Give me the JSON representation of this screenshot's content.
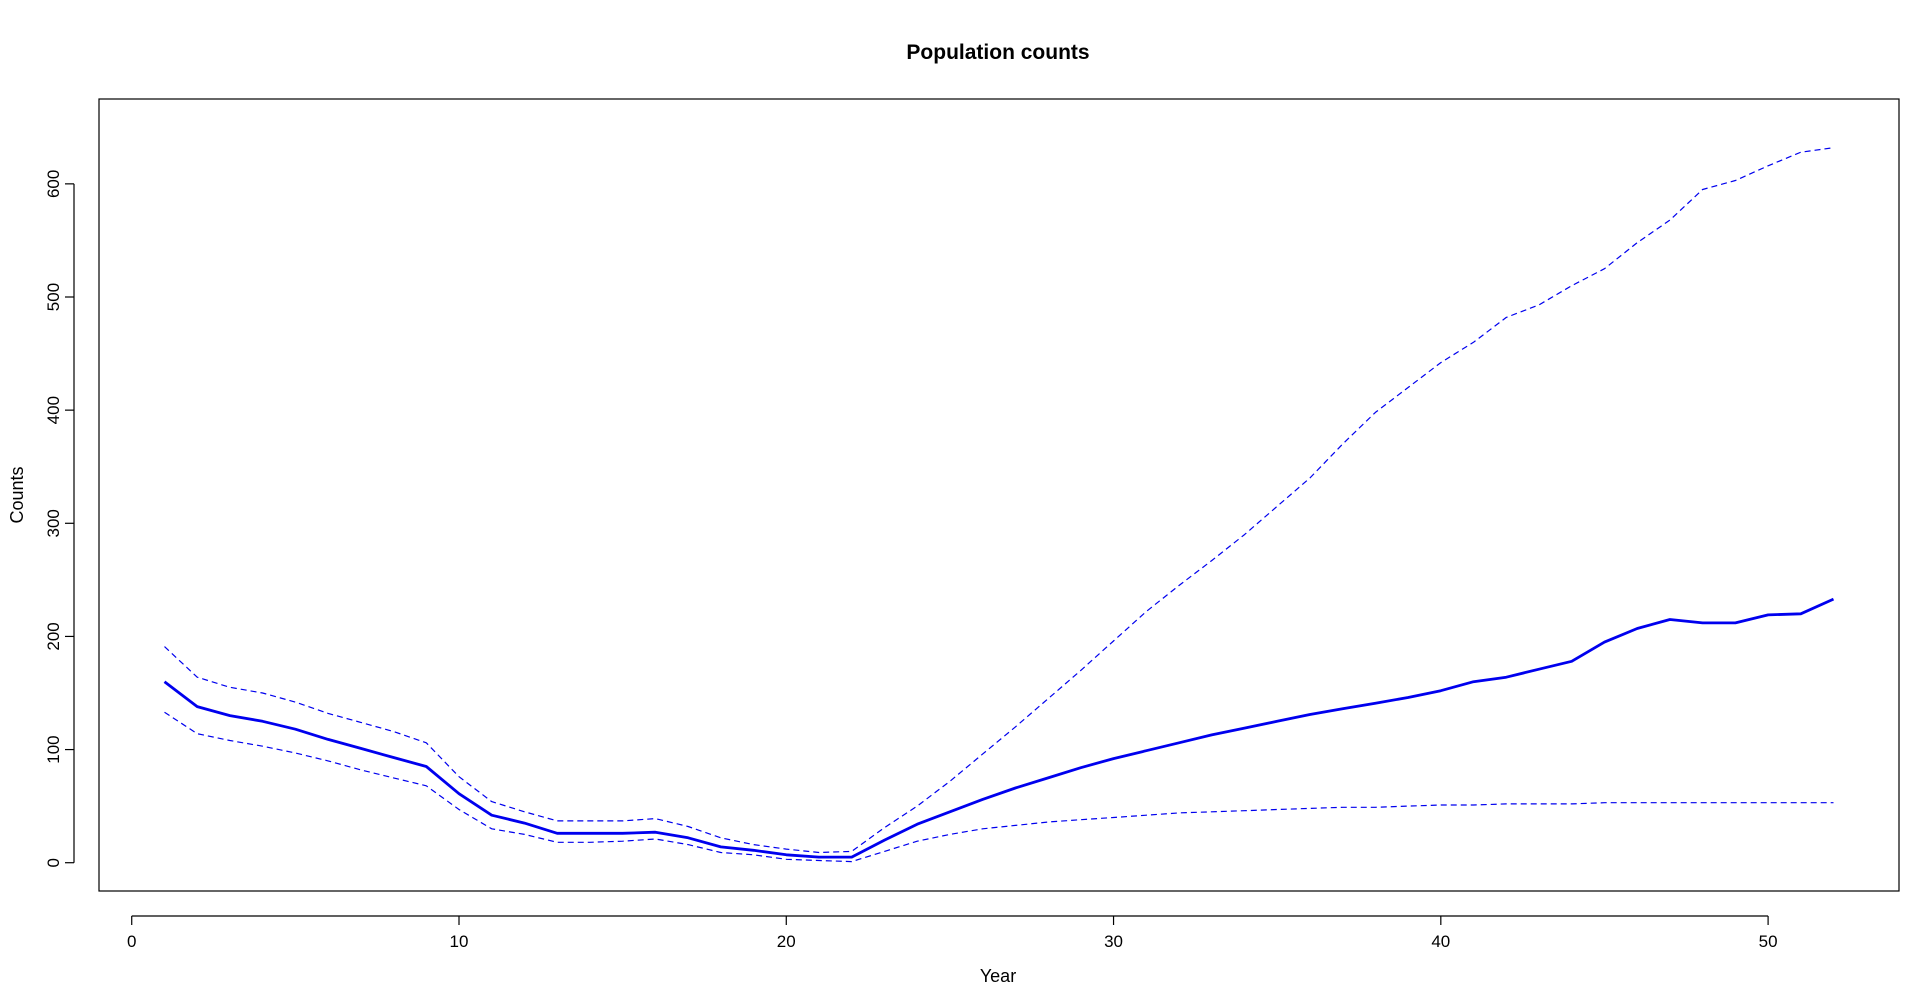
{
  "chart_data": {
    "type": "line",
    "title": "Population counts",
    "xlabel": "Year",
    "ylabel": "Counts",
    "xlim": [
      -1,
      54
    ],
    "ylim": [
      -25,
      675
    ],
    "x_ticks": [
      0,
      10,
      20,
      30,
      40,
      50
    ],
    "y_ticks": [
      0,
      100,
      200,
      300,
      400,
      500,
      600
    ],
    "x_tick_labels": [
      "0",
      "10",
      "20",
      "30",
      "40",
      "50"
    ],
    "y_tick_labels": [
      "0",
      "100",
      "200",
      "300",
      "400",
      "500",
      "600"
    ],
    "grid": false,
    "legend": "none",
    "x": [
      1,
      2,
      3,
      4,
      5,
      6,
      7,
      8,
      9,
      10,
      11,
      12,
      13,
      14,
      15,
      16,
      17,
      18,
      19,
      20,
      21,
      22,
      23,
      24,
      25,
      26,
      27,
      28,
      29,
      30,
      31,
      32,
      33,
      34,
      35,
      36,
      37,
      38,
      39,
      40,
      41,
      42,
      43,
      44,
      45,
      46,
      47,
      48,
      49,
      50,
      51,
      52
    ],
    "series": [
      {
        "style": "solid",
        "color": "#0000ee",
        "values": [
          160,
          138,
          130,
          125,
          118,
          109,
          101,
          93,
          85,
          61,
          42,
          35,
          26,
          26,
          26,
          27,
          22,
          14,
          11,
          7,
          5,
          5,
          20,
          34,
          45,
          56,
          66,
          75,
          84,
          92,
          99,
          106,
          113,
          119,
          125,
          131,
          136,
          141,
          146,
          152,
          160,
          164,
          171,
          178,
          195,
          207,
          215,
          212,
          212,
          219,
          220,
          233
        ]
      },
      {
        "style": "dashed",
        "color": "#0000ee",
        "values": [
          191,
          164,
          155,
          150,
          142,
          132,
          124,
          116,
          106,
          76,
          54,
          45,
          37,
          37,
          37,
          39,
          32,
          22,
          16,
          12,
          9,
          10,
          31,
          50,
          72,
          96,
          120,
          145,
          170,
          196,
          222,
          245,
          267,
          290,
          315,
          340,
          370,
          398,
          420,
          442,
          460,
          482,
          493,
          510,
          525,
          548,
          568,
          595,
          603,
          616,
          628,
          632
        ]
      },
      {
        "style": "dashed",
        "color": "#0000ee",
        "values": [
          133,
          114,
          108,
          103,
          97,
          90,
          82,
          75,
          68,
          47,
          30,
          25,
          18,
          18,
          19,
          21,
          16,
          9,
          7,
          3,
          2,
          1,
          10,
          19,
          25,
          30,
          33,
          36,
          38,
          40,
          42,
          44,
          45,
          46,
          47,
          48,
          49,
          49,
          50,
          51,
          51,
          52,
          52,
          52,
          53,
          53,
          53,
          53,
          53,
          53,
          53,
          53
        ]
      }
    ]
  }
}
